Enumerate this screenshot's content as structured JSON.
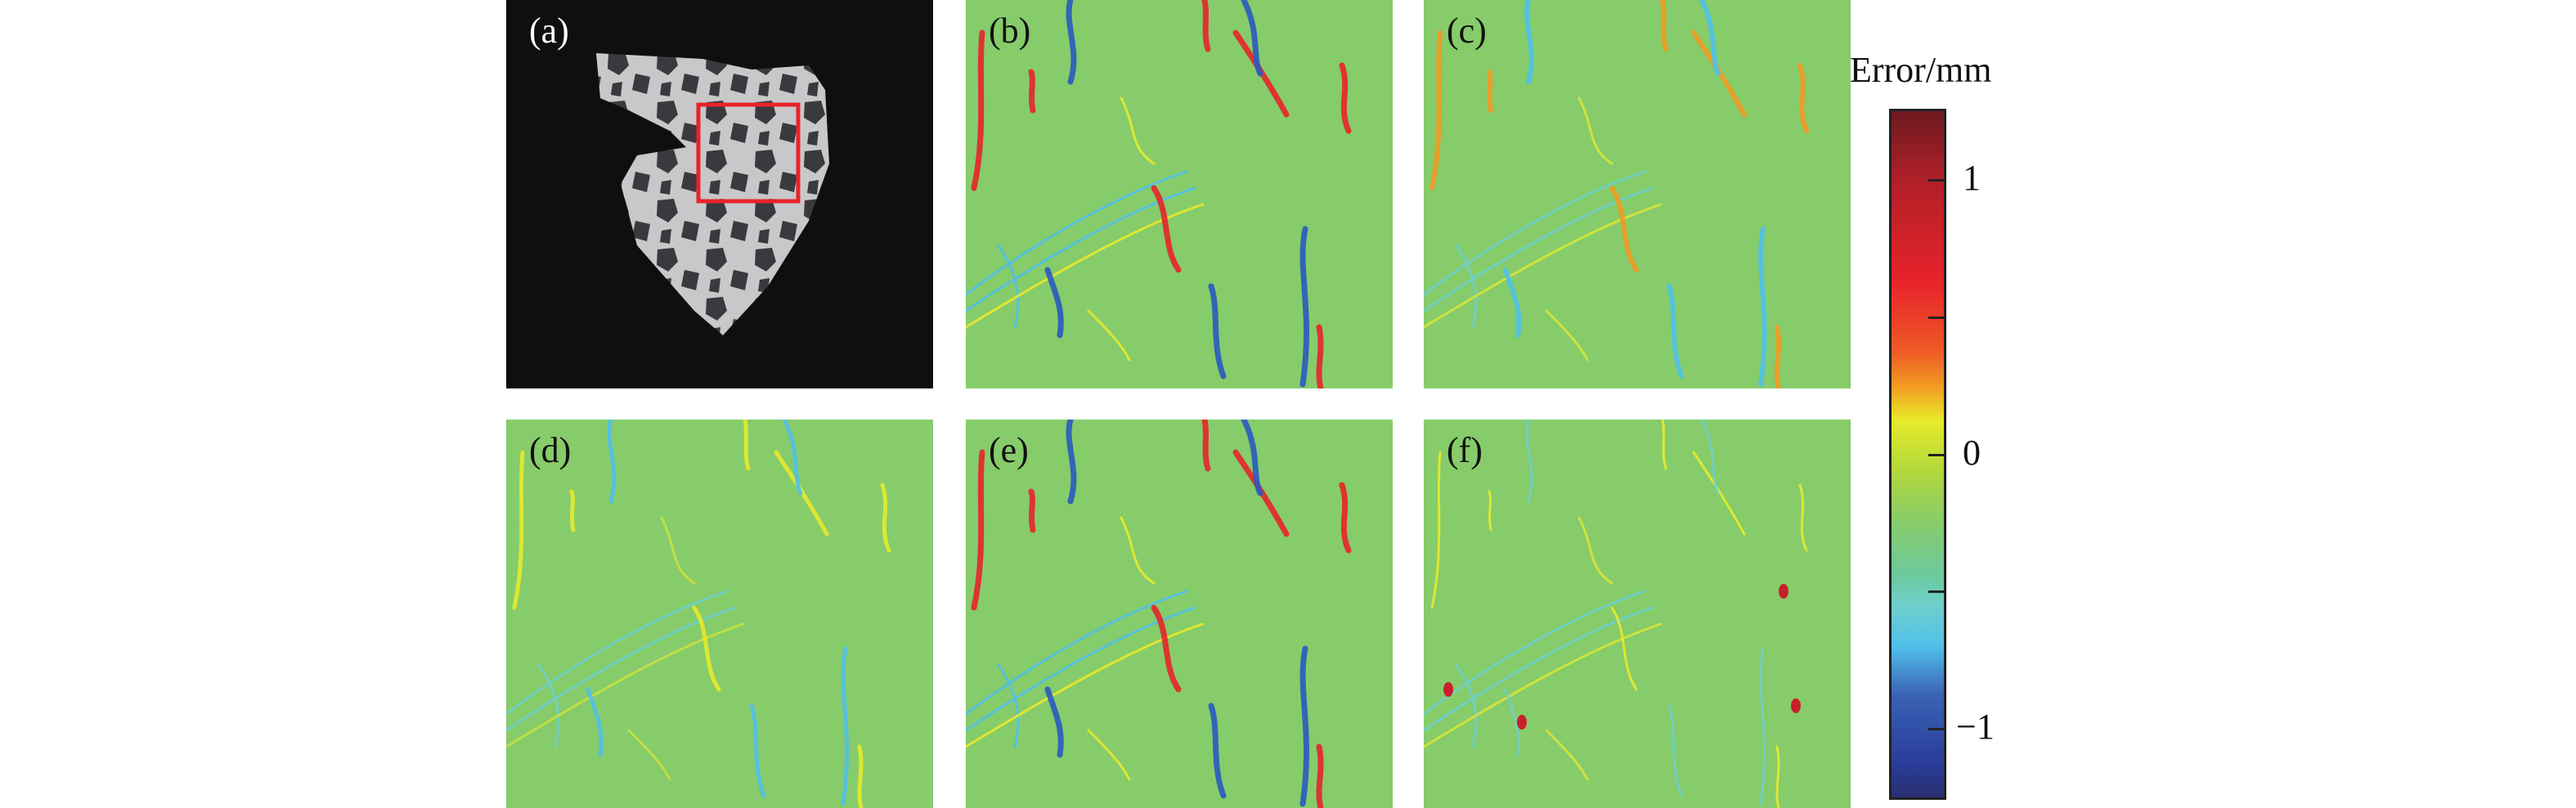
{
  "figure": {
    "panels": [
      {
        "id": "a",
        "label": "(a)",
        "kind": "grayscale speckle image with red region-of-interest box",
        "roi_color": "#e8232a"
      },
      {
        "id": "b",
        "label": "(b)",
        "kind": "error map"
      },
      {
        "id": "c",
        "label": "(c)",
        "kind": "error map"
      },
      {
        "id": "d",
        "label": "(d)",
        "kind": "error map"
      },
      {
        "id": "e",
        "label": "(e)",
        "kind": "error map"
      },
      {
        "id": "f",
        "label": "(f)",
        "kind": "error map"
      }
    ],
    "colorbar": {
      "title": "Error/mm",
      "range": [
        -1.25,
        1.25
      ],
      "colormap": "jet-like",
      "tick_values": [
        1,
        0.5,
        0,
        -0.5,
        -1
      ],
      "tick_labels": [
        {
          "value": 1,
          "label": "1"
        },
        {
          "value": 0,
          "label": "0"
        },
        {
          "value": -1,
          "label": "−1"
        }
      ],
      "colors": {
        "zero": "#86cc6a",
        "positive": "#e8232a",
        "negative": "#2a3d9a"
      }
    }
  }
}
